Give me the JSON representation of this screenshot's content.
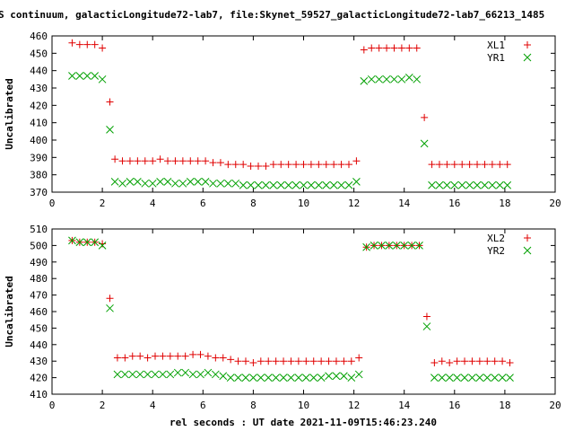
{
  "title": "S continuum, galacticLongitude72-lab7, file:Skynet_59527_galacticLongitude72-lab7_66213_1485",
  "xlabel": "rel seconds : UT date 2021-11-09T15:46:23.240",
  "colors": {
    "red": "#e00000",
    "green": "#00a000",
    "axis": "#000000",
    "grid": "#999999"
  },
  "chart_data": [
    {
      "type": "scatter",
      "ylabel": "Uncalibrated",
      "xlim": [
        0,
        20
      ],
      "ylim": [
        370,
        460
      ],
      "xticks": [
        "0",
        "2",
        "4",
        "6",
        "8",
        "10",
        "12",
        "14",
        "16",
        "18",
        "20"
      ],
      "yticks": [
        "370",
        "380",
        "390",
        "400",
        "410",
        "420",
        "430",
        "440",
        "450",
        "460"
      ],
      "legend_position": "top-right",
      "series": [
        {
          "name": "XL1",
          "color": "#e00000",
          "marker": "plus",
          "x": [
            0.8,
            1.1,
            1.4,
            1.7,
            2.0,
            2.3,
            2.5,
            2.8,
            3.1,
            3.4,
            3.7,
            4.0,
            4.3,
            4.6,
            4.9,
            5.2,
            5.5,
            5.8,
            6.1,
            6.4,
            6.7,
            7.0,
            7.3,
            7.6,
            7.9,
            8.2,
            8.5,
            8.8,
            9.1,
            9.4,
            9.7,
            10.0,
            10.3,
            10.6,
            10.9,
            11.2,
            11.5,
            11.8,
            12.1,
            12.4,
            12.7,
            13.0,
            13.3,
            13.6,
            13.9,
            14.2,
            14.5,
            14.8,
            15.1,
            15.4,
            15.7,
            16.0,
            16.3,
            16.6,
            16.9,
            17.2,
            17.5,
            17.8,
            18.1
          ],
          "y": [
            456,
            455,
            455,
            455,
            453,
            422,
            389,
            388,
            388,
            388,
            388,
            388,
            389,
            388,
            388,
            388,
            388,
            388,
            388,
            387,
            387,
            386,
            386,
            386,
            385,
            385,
            385,
            386,
            386,
            386,
            386,
            386,
            386,
            386,
            386,
            386,
            386,
            386,
            388,
            452,
            453,
            453,
            453,
            453,
            453,
            453,
            453,
            413,
            386,
            386,
            386,
            386,
            386,
            386,
            386,
            386,
            386,
            386,
            386
          ]
        },
        {
          "name": "YR1",
          "color": "#00a000",
          "marker": "cross",
          "x": [
            0.8,
            1.1,
            1.4,
            1.7,
            2.0,
            2.3,
            2.5,
            2.8,
            3.1,
            3.4,
            3.7,
            4.0,
            4.3,
            4.6,
            4.9,
            5.2,
            5.5,
            5.8,
            6.1,
            6.4,
            6.7,
            7.0,
            7.3,
            7.6,
            7.9,
            8.2,
            8.5,
            8.8,
            9.1,
            9.4,
            9.7,
            10.0,
            10.3,
            10.6,
            10.9,
            11.2,
            11.5,
            11.8,
            12.1,
            12.4,
            12.7,
            13.0,
            13.3,
            13.6,
            13.9,
            14.2,
            14.5,
            14.8,
            15.1,
            15.4,
            15.7,
            16.0,
            16.3,
            16.6,
            16.9,
            17.2,
            17.5,
            17.8,
            18.1
          ],
          "y": [
            437,
            437,
            437,
            437,
            435,
            406,
            376,
            375,
            376,
            376,
            375,
            375,
            376,
            376,
            375,
            375,
            376,
            376,
            376,
            375,
            375,
            375,
            375,
            374,
            374,
            374,
            374,
            374,
            374,
            374,
            374,
            374,
            374,
            374,
            374,
            374,
            374,
            374,
            376,
            434,
            435,
            435,
            435,
            435,
            435,
            436,
            435,
            398,
            374,
            374,
            374,
            374,
            374,
            374,
            374,
            374,
            374,
            374,
            374
          ]
        }
      ]
    },
    {
      "type": "scatter",
      "ylabel": "Uncalibrated",
      "xlim": [
        0,
        20
      ],
      "ylim": [
        410,
        510
      ],
      "xticks": [
        "0",
        "2",
        "4",
        "6",
        "8",
        "10",
        "12",
        "14",
        "16",
        "18",
        "20"
      ],
      "yticks": [
        "410",
        "420",
        "430",
        "440",
        "450",
        "460",
        "470",
        "480",
        "490",
        "500",
        "510"
      ],
      "legend_position": "top-right",
      "series": [
        {
          "name": "XL2",
          "color": "#e00000",
          "marker": "plus",
          "x": [
            0.8,
            1.1,
            1.4,
            1.7,
            2.0,
            2.3,
            2.6,
            2.9,
            3.2,
            3.5,
            3.8,
            4.1,
            4.4,
            4.7,
            5.0,
            5.3,
            5.6,
            5.9,
            6.2,
            6.5,
            6.8,
            7.1,
            7.4,
            7.7,
            8.0,
            8.3,
            8.6,
            8.9,
            9.2,
            9.5,
            9.8,
            10.1,
            10.4,
            10.7,
            11.0,
            11.3,
            11.6,
            11.9,
            12.2,
            12.5,
            12.8,
            13.1,
            13.4,
            13.7,
            14.0,
            14.3,
            14.6,
            14.9,
            15.2,
            15.5,
            15.8,
            16.1,
            16.4,
            16.7,
            17.0,
            17.3,
            17.6,
            17.9,
            18.2
          ],
          "y": [
            503,
            502,
            502,
            502,
            501,
            468,
            432,
            432,
            433,
            433,
            432,
            433,
            433,
            433,
            433,
            433,
            434,
            434,
            433,
            432,
            432,
            431,
            430,
            430,
            429,
            430,
            430,
            430,
            430,
            430,
            430,
            430,
            430,
            430,
            430,
            430,
            430,
            430,
            432,
            499,
            500,
            500,
            500,
            500,
            500,
            500,
            500,
            457,
            429,
            430,
            429,
            430,
            430,
            430,
            430,
            430,
            430,
            430,
            429
          ]
        },
        {
          "name": "YR2",
          "color": "#00a000",
          "marker": "cross",
          "x": [
            0.8,
            1.1,
            1.4,
            1.7,
            2.0,
            2.3,
            2.6,
            2.9,
            3.2,
            3.5,
            3.8,
            4.1,
            4.4,
            4.7,
            5.0,
            5.3,
            5.6,
            5.9,
            6.2,
            6.5,
            6.8,
            7.1,
            7.4,
            7.7,
            8.0,
            8.3,
            8.6,
            8.9,
            9.2,
            9.5,
            9.8,
            10.1,
            10.4,
            10.7,
            11.0,
            11.3,
            11.6,
            11.9,
            12.2,
            12.5,
            12.8,
            13.1,
            13.4,
            13.7,
            14.0,
            14.3,
            14.6,
            14.9,
            15.2,
            15.5,
            15.8,
            16.1,
            16.4,
            16.7,
            17.0,
            17.3,
            17.6,
            17.9,
            18.2
          ],
          "y": [
            503,
            502,
            502,
            502,
            500,
            462,
            422,
            422,
            422,
            422,
            422,
            422,
            422,
            422,
            423,
            423,
            422,
            422,
            423,
            422,
            421,
            420,
            420,
            420,
            420,
            420,
            420,
            420,
            420,
            420,
            420,
            420,
            420,
            420,
            421,
            421,
            421,
            420,
            422,
            499,
            500,
            500,
            500,
            500,
            500,
            500,
            500,
            451,
            420,
            420,
            420,
            420,
            420,
            420,
            420,
            420,
            420,
            420,
            420
          ]
        }
      ]
    }
  ]
}
